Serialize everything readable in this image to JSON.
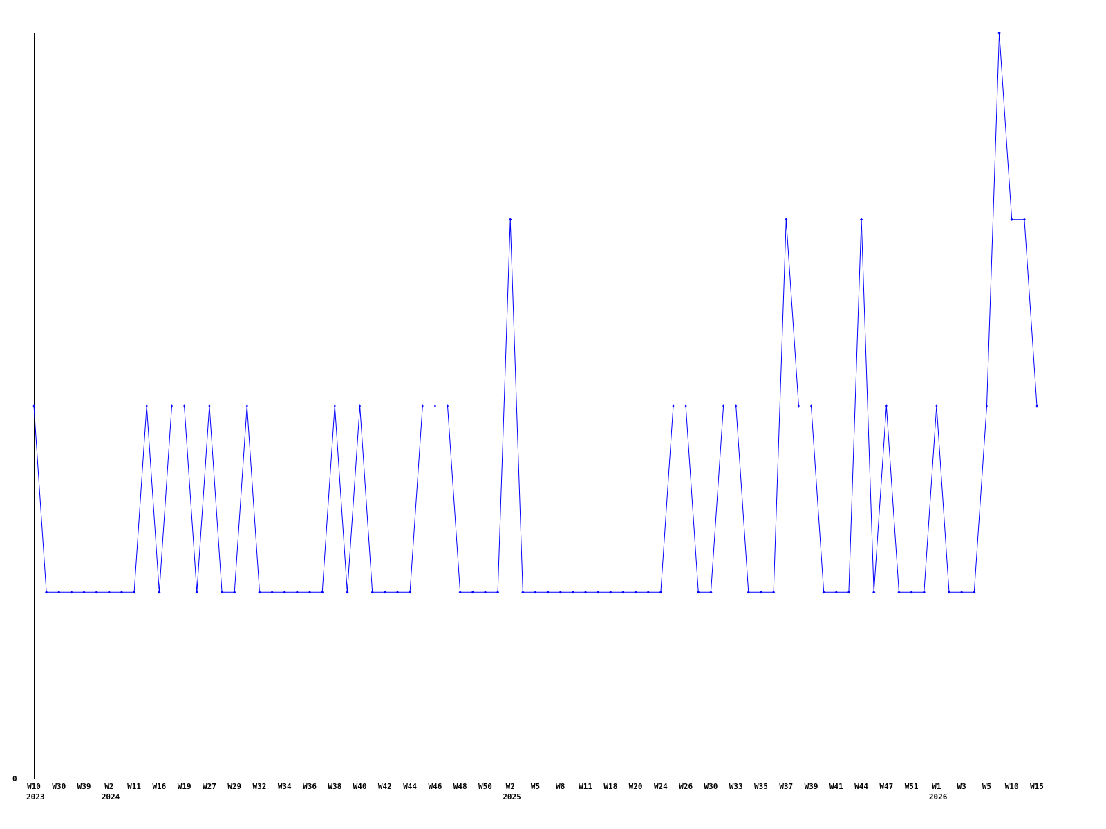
{
  "chart_data": {
    "type": "line",
    "title": "",
    "xlabel": "",
    "ylabel": "",
    "y_tick_labels": [
      "0"
    ],
    "ylim": [
      0,
      4
    ],
    "grid": false,
    "series_color": "#0000ff",
    "x_tick_labels": [
      "W10",
      "W30",
      "W39",
      "W2",
      "W11",
      "W16",
      "W19",
      "W27",
      "W29",
      "W32",
      "W34",
      "W36",
      "W38",
      "W40",
      "W42",
      "W44",
      "W46",
      "W48",
      "W50",
      "W2",
      "W5",
      "W8",
      "W11",
      "W18",
      "W20",
      "W24",
      "W26",
      "W30",
      "W33",
      "W35",
      "W37",
      "W39",
      "W41",
      "W44",
      "W47",
      "W51",
      "W1",
      "W3",
      "W5",
      "W10",
      "W15"
    ],
    "year_labels": [
      {
        "label": "2023",
        "tick": 0
      },
      {
        "label": "2024",
        "tick": 3
      },
      {
        "label": "2025",
        "tick": 19
      },
      {
        "label": "2026",
        "tick": 36
      }
    ],
    "values": [
      2,
      1,
      1,
      1,
      1,
      1,
      1,
      1,
      1,
      2,
      1,
      2,
      2,
      1,
      2,
      1,
      1,
      2,
      1,
      1,
      1,
      1,
      1,
      1,
      2,
      1,
      2,
      1,
      1,
      1,
      1,
      2,
      2,
      2,
      1,
      1,
      1,
      1,
      3,
      1,
      1,
      1,
      1,
      1,
      1,
      1,
      1,
      1,
      1,
      1,
      1,
      2,
      2,
      1,
      1,
      2,
      2,
      1,
      1,
      1,
      3,
      2,
      2,
      1,
      1,
      1,
      3,
      1,
      2,
      1,
      1,
      1,
      2,
      1,
      1,
      1,
      2,
      4,
      3,
      3,
      2
    ]
  }
}
